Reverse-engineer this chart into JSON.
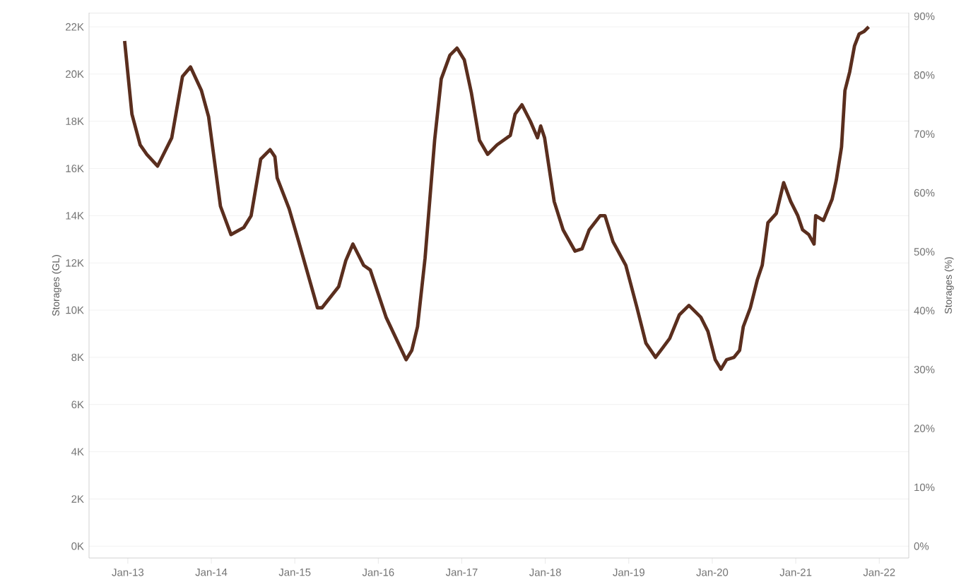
{
  "chart_data": {
    "type": "line",
    "xlabel": null,
    "ylabel": "Storages (GL)",
    "y2label": "Storages (%)",
    "x": [
      "2012-12-18",
      "2013-01-19",
      "2013-02-24",
      "2013-03-25",
      "2013-05-11",
      "2013-07-12",
      "2013-08-28",
      "2013-10-02",
      "2013-11-19",
      "2013-12-20",
      "2014-02-10",
      "2014-03-28",
      "2014-05-23",
      "2014-06-24",
      "2014-08-05",
      "2014-09-15",
      "2014-10-06",
      "2014-10-16",
      "2014-12-07",
      "2015-01-18",
      "2015-04-10",
      "2015-04-30",
      "2015-07-12",
      "2015-08-12",
      "2015-09-12",
      "2015-10-29",
      "2015-11-27",
      "2016-02-04",
      "2016-05-02",
      "2016-05-27",
      "2016-06-21",
      "2016-07-24",
      "2016-08-14",
      "2016-09-04",
      "2016-10-03",
      "2016-11-10",
      "2016-12-11",
      "2017-01-12",
      "2017-02-12",
      "2017-03-19",
      "2017-04-24",
      "2017-06-04",
      "2017-08-01",
      "2017-08-22",
      "2017-09-21",
      "2017-10-28",
      "2017-11-28",
      "2017-12-12",
      "2017-12-29",
      "2018-02-09",
      "2018-03-20",
      "2018-05-11",
      "2018-06-11",
      "2018-07-12",
      "2018-08-29",
      "2018-09-19",
      "2018-10-24",
      "2018-12-19",
      "2019-02-06",
      "2019-03-17",
      "2019-04-28",
      "2019-05-29",
      "2019-06-29",
      "2019-08-10",
      "2019-09-21",
      "2019-11-12",
      "2019-12-13",
      "2020-01-14",
      "2020-02-08",
      "2020-03-04",
      "2020-04-05",
      "2020-04-30",
      "2020-05-16",
      "2020-06-16",
      "2020-07-17",
      "2020-08-07",
      "2020-09-01",
      "2020-10-08",
      "2020-11-09",
      "2020-12-10",
      "2021-01-10",
      "2021-01-31",
      "2021-02-27",
      "2021-03-22",
      "2021-03-29",
      "2021-05-02",
      "2021-06-09",
      "2021-06-27",
      "2021-07-20",
      "2021-08-04",
      "2021-08-25",
      "2021-09-15",
      "2021-10-05",
      "2021-10-26",
      "2021-11-16"
    ],
    "series": [
      {
        "color": "#5a2e1e",
        "values": [
          21400,
          18300,
          17000,
          16600,
          16100,
          17300,
          19900,
          20300,
          19300,
          18200,
          14400,
          13200,
          13500,
          14000,
          16400,
          16800,
          16500,
          15600,
          14300,
          12900,
          10100,
          10100,
          11000,
          12100,
          12800,
          11900,
          11700,
          9700,
          7900,
          8300,
          9300,
          12200,
          14700,
          17200,
          19800,
          20800,
          21100,
          20600,
          19200,
          17200,
          16600,
          17000,
          17400,
          18300,
          18700,
          18000,
          17300,
          17800,
          17300,
          14600,
          13400,
          12500,
          12600,
          13400,
          14000,
          14000,
          12900,
          11900,
          10100,
          8600,
          8000,
          8400,
          8800,
          9800,
          10200,
          9700,
          9100,
          7900,
          7500,
          7900,
          8000,
          8300,
          9300,
          10100,
          11300,
          11900,
          13700,
          14100,
          15400,
          14600,
          14000,
          13400,
          13200,
          12800,
          14000,
          13800,
          14700,
          15500,
          16900,
          19300,
          20100,
          21200,
          21700,
          21800,
          22000
        ]
      }
    ],
    "xlim": [
      "2012-07-15",
      "2022-05-10"
    ],
    "xticks": [
      {
        "value": "2013-01",
        "label": "Jan-13"
      },
      {
        "value": "2014-01",
        "label": "Jan-14"
      },
      {
        "value": "2015-01",
        "label": "Jan-15"
      },
      {
        "value": "2016-01",
        "label": "Jan-16"
      },
      {
        "value": "2017-01",
        "label": "Jan-17"
      },
      {
        "value": "2018-01",
        "label": "Jan-18"
      },
      {
        "value": "2019-01",
        "label": "Jan-19"
      },
      {
        "value": "2020-01",
        "label": "Jan-20"
      },
      {
        "value": "2021-01",
        "label": "Jan-21"
      },
      {
        "value": "2022-01",
        "label": "Jan-22"
      }
    ],
    "ylim": [
      -500,
      22600
    ],
    "yticks": [
      {
        "value": 0,
        "label": "0K"
      },
      {
        "value": 2000,
        "label": "2K"
      },
      {
        "value": 4000,
        "label": "4K"
      },
      {
        "value": 6000,
        "label": "6K"
      },
      {
        "value": 8000,
        "label": "8K"
      },
      {
        "value": 10000,
        "label": "10K"
      },
      {
        "value": 12000,
        "label": "12K"
      },
      {
        "value": 14000,
        "label": "14K"
      },
      {
        "value": 16000,
        "label": "16K"
      },
      {
        "value": 18000,
        "label": "18K"
      },
      {
        "value": 20000,
        "label": "20K"
      },
      {
        "value": 22000,
        "label": "22K"
      }
    ],
    "y2lim": [
      -2,
      90.6
    ],
    "y2ticks": [
      {
        "value": 0,
        "label": "0%"
      },
      {
        "value": 10,
        "label": "10%"
      },
      {
        "value": 20,
        "label": "20%"
      },
      {
        "value": 30,
        "label": "30%"
      },
      {
        "value": 40,
        "label": "40%"
      },
      {
        "value": 50,
        "label": "50%"
      },
      {
        "value": 60,
        "label": "60%"
      },
      {
        "value": 70,
        "label": "70%"
      },
      {
        "value": 80,
        "label": "80%"
      },
      {
        "value": 90,
        "label": "90%"
      }
    ],
    "grid": "y"
  }
}
